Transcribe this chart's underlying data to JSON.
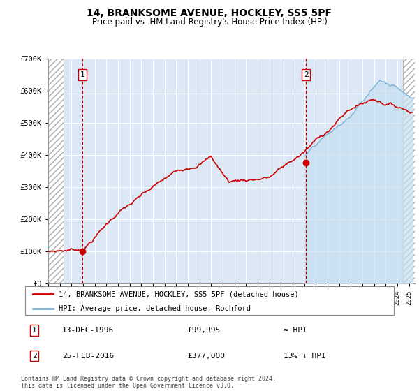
{
  "title": "14, BRANKSOME AVENUE, HOCKLEY, SS5 5PF",
  "subtitle": "Price paid vs. HM Land Registry's House Price Index (HPI)",
  "legend_line1": "14, BRANKSOME AVENUE, HOCKLEY, SS5 5PF (detached house)",
  "legend_line2": "HPI: Average price, detached house, Rochford",
  "footnote": "Contains HM Land Registry data © Crown copyright and database right 2024.\nThis data is licensed under the Open Government Licence v3.0.",
  "sale1_date": "13-DEC-1996",
  "sale1_price": "£99,995",
  "sale1_note": "≈ HPI",
  "sale2_date": "25-FEB-2016",
  "sale2_price": "£377,000",
  "sale2_note": "13% ↓ HPI",
  "sale1_x": 1996.95,
  "sale1_y": 99995,
  "sale2_x": 2016.15,
  "sale2_y": 377000,
  "ylim": [
    0,
    700000
  ],
  "xlim": [
    1994.0,
    2025.5
  ],
  "hatch_left_end": 1995.3,
  "hatch_right_start": 2024.5,
  "plot_bg": "#dce8f5",
  "red_color": "#cc0000",
  "blue_color": "#7ab0d4"
}
